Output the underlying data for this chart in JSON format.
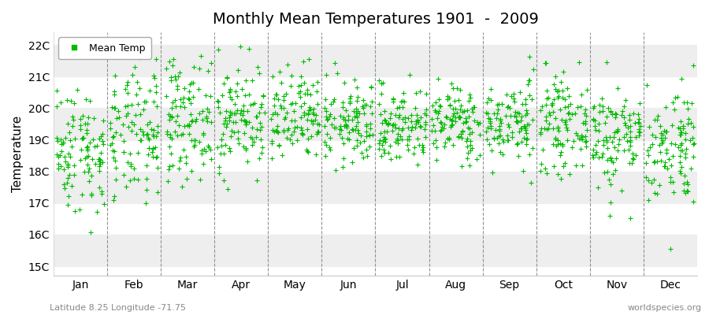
{
  "title": "Monthly Mean Temperatures 1901  -  2009",
  "ylabel": "Temperature",
  "xlabel_labels": [
    "Jan",
    "Feb",
    "Mar",
    "Apr",
    "May",
    "Jun",
    "Jul",
    "Aug",
    "Sep",
    "Oct",
    "Nov",
    "Dec"
  ],
  "ytick_labels": [
    "15C",
    "16C",
    "17C",
    "18C",
    "19C",
    "20C",
    "21C",
    "22C"
  ],
  "ytick_values": [
    15,
    16,
    17,
    18,
    19,
    20,
    21,
    22
  ],
  "ylim": [
    14.7,
    22.4
  ],
  "marker_color": "#00BB00",
  "marker": "+",
  "marker_size": 4,
  "legend_label": "Mean Temp",
  "subtitle": "Latitude 8.25 Longitude -71.75",
  "watermark": "worldspecies.org",
  "bg_band_color": "#EEEEEE",
  "n_years": 109,
  "monthly_means": [
    18.7,
    19.1,
    19.7,
    19.7,
    19.65,
    19.5,
    19.45,
    19.55,
    19.55,
    19.5,
    19.1,
    18.85
  ],
  "monthly_stds": [
    1.0,
    1.05,
    0.95,
    0.85,
    0.75,
    0.65,
    0.62,
    0.6,
    0.65,
    0.72,
    0.85,
    0.95
  ],
  "seed": 42,
  "figsize": [
    9.0,
    4.0
  ],
  "dpi": 100
}
